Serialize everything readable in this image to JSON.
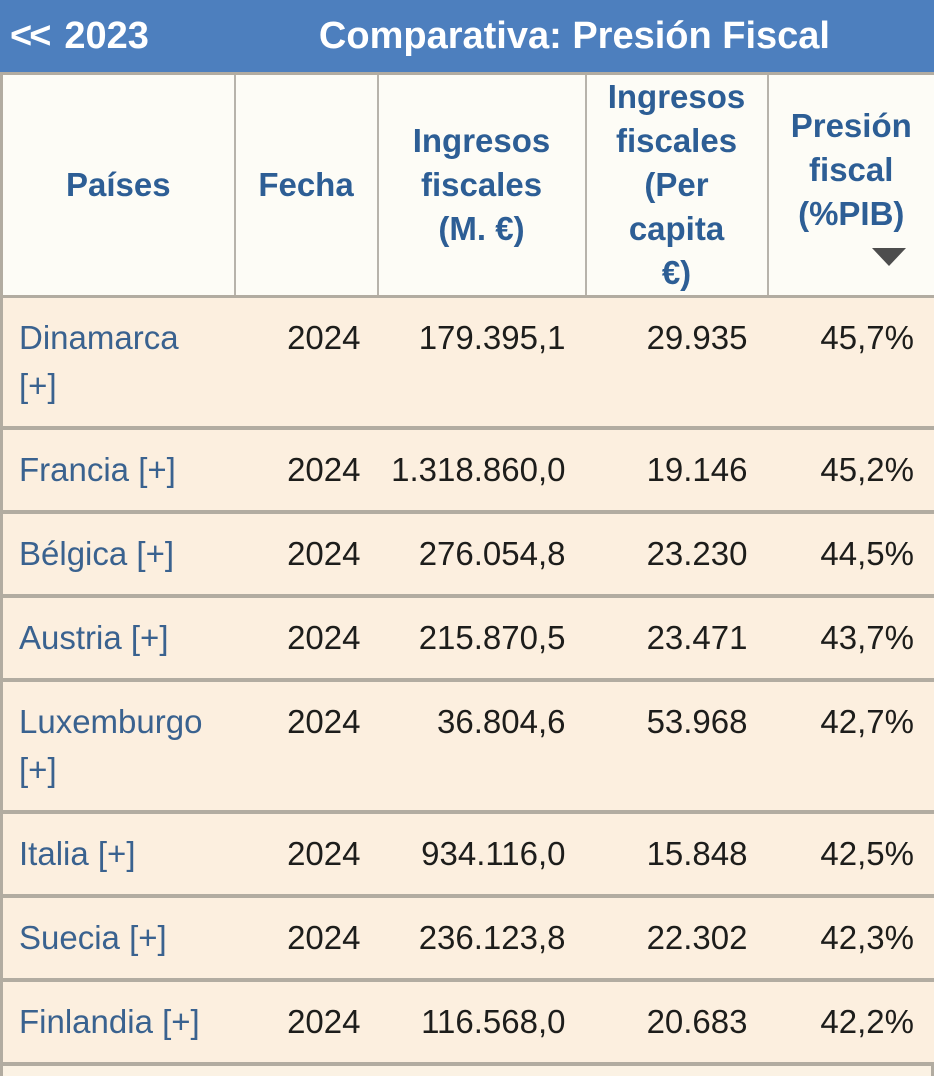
{
  "topbar": {
    "back_chevrons": "<<",
    "back_year": "2023",
    "title": "Comparativa: Presión Fiscal"
  },
  "table": {
    "headers": [
      {
        "id": "paises",
        "lines": [
          "Países"
        ]
      },
      {
        "id": "fecha",
        "lines": [
          "Fecha"
        ]
      },
      {
        "id": "ingresos_fiscales_m",
        "lines": [
          "Ingresos",
          "fiscales",
          "(M. €)"
        ]
      },
      {
        "id": "ingresos_fiscales_pc",
        "lines": [
          "Ingresos",
          "fiscales",
          "(Per",
          "capita",
          "€)"
        ]
      },
      {
        "id": "presion_fiscal",
        "lines": [
          "Presión",
          "fiscal",
          "(%PIB)"
        ],
        "sort_icon": "sort-desc-arrow"
      }
    ],
    "rows": [
      {
        "country": "Dinamarca [+]",
        "fecha": "2024",
        "ingresos_m": "179.395,1",
        "per_capita": "29.935",
        "presion": "45,7%"
      },
      {
        "country": "Francia [+]",
        "fecha": "2024",
        "ingresos_m": "1.318.860,0",
        "per_capita": "19.146",
        "presion": "45,2%"
      },
      {
        "country": "Bélgica [+]",
        "fecha": "2024",
        "ingresos_m": "276.054,8",
        "per_capita": "23.230",
        "presion": "44,5%"
      },
      {
        "country": "Austria [+]",
        "fecha": "2024",
        "ingresos_m": "215.870,5",
        "per_capita": "23.471",
        "presion": "43,7%"
      },
      {
        "country": "Luxemburgo [+]",
        "fecha": "2024",
        "ingresos_m": "36.804,6",
        "per_capita": "53.968",
        "presion": "42,7%"
      },
      {
        "country": "Italia [+]",
        "fecha": "2024",
        "ingresos_m": "934.116,0",
        "per_capita": "15.848",
        "presion": "42,5%"
      },
      {
        "country": "Suecia [+]",
        "fecha": "2024",
        "ingresos_m": "236.123,8",
        "per_capita": "22.302",
        "presion": "42,3%"
      },
      {
        "country": "Finlandia [+]",
        "fecha": "2024",
        "ingresos_m": "116.568,0",
        "per_capita": "20.683",
        "presion": "42,2%"
      }
    ]
  },
  "colors": {
    "topbar_bg": "#4d7fbe",
    "header_text": "#2d5e95",
    "country_link": "#3a628f",
    "row_bg": "#fcefdf",
    "header_bg": "#fdfcf6",
    "border": "#b2aca1",
    "sort_arrow": "#4d4d4d",
    "body_text": "#1d1d1b"
  }
}
